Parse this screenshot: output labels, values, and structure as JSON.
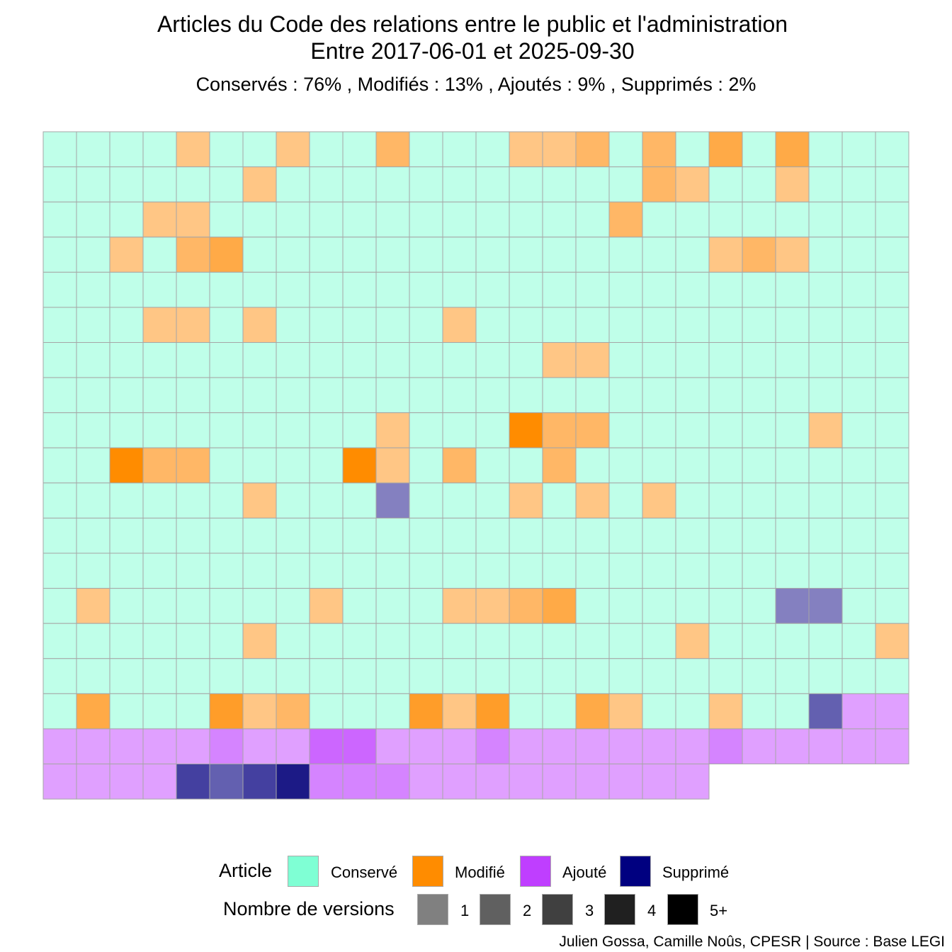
{
  "chart_data": {
    "type": "heatmap",
    "title_line1": "Articles du Code des relations entre le public et l'administration",
    "title_line2": "Entre 2017-06-01 et 2025-09-30",
    "subtitle": "Conservés :  76% , Modifiés :  13% , Ajoutés :  9% , Supprimés :  2%",
    "columns": 26,
    "grid_color": "#a6a6a6",
    "status_codes": {
      "C": "Conservé",
      "M": "Modifié",
      "A": "Ajouté",
      "S": "Supprimé"
    },
    "rows": [
      [
        "C1",
        "C1",
        "C1",
        "C1",
        "M1",
        "C1",
        "C1",
        "M1",
        "C1",
        "C1",
        "M2",
        "C1",
        "C1",
        "C1",
        "M1",
        "M1",
        "M2",
        "C1",
        "M2",
        "C1",
        "M3",
        "C1",
        "M3",
        "C1",
        "C1",
        "C1"
      ],
      [
        "C1",
        "C1",
        "C1",
        "C1",
        "C1",
        "C1",
        "M1",
        "C1",
        "C1",
        "C1",
        "C1",
        "C1",
        "C1",
        "C1",
        "C1",
        "C1",
        "C1",
        "C1",
        "M2",
        "M1",
        "C1",
        "C1",
        "M1",
        "C1",
        "C1",
        "C1"
      ],
      [
        "C1",
        "C1",
        "C1",
        "M1",
        "M1",
        "C1",
        "C1",
        "C1",
        "C1",
        "C1",
        "C1",
        "C1",
        "C1",
        "C1",
        "C1",
        "C1",
        "C1",
        "M2",
        "C1",
        "C1",
        "C1",
        "C1",
        "C1",
        "C1",
        "C1",
        "C1"
      ],
      [
        "C1",
        "C1",
        "M1",
        "C1",
        "M2",
        "M3",
        "C1",
        "C1",
        "C1",
        "C1",
        "C1",
        "C1",
        "C1",
        "C1",
        "C1",
        "C1",
        "C1",
        "C1",
        "C1",
        "C1",
        "M1",
        "M2",
        "M1",
        "C1",
        "C1",
        "C1"
      ],
      [
        "C1",
        "C1",
        "C1",
        "C1",
        "C1",
        "C1",
        "C1",
        "C1",
        "C1",
        "C1",
        "C1",
        "C1",
        "C1",
        "C1",
        "C1",
        "C1",
        "C1",
        "C1",
        "C1",
        "C1",
        "C1",
        "C1",
        "C1",
        "C1",
        "C1",
        "C1"
      ],
      [
        "C1",
        "C1",
        "C1",
        "M1",
        "M1",
        "C1",
        "M1",
        "C1",
        "C1",
        "C1",
        "C1",
        "C1",
        "M1",
        "C1",
        "C1",
        "C1",
        "C1",
        "C1",
        "C1",
        "C1",
        "C1",
        "C1",
        "C1",
        "C1",
        "C1",
        "C1"
      ],
      [
        "C1",
        "C1",
        "C1",
        "C1",
        "C1",
        "C1",
        "C1",
        "C1",
        "C1",
        "C1",
        "C1",
        "C1",
        "C1",
        "C1",
        "C1",
        "M1",
        "M1",
        "C1",
        "C1",
        "C1",
        "C1",
        "C1",
        "C1",
        "C1",
        "C1",
        "C1"
      ],
      [
        "C1",
        "C1",
        "C1",
        "C1",
        "C1",
        "C1",
        "C1",
        "C1",
        "C1",
        "C1",
        "C1",
        "C1",
        "C1",
        "C1",
        "C1",
        "C1",
        "C1",
        "C1",
        "C1",
        "C1",
        "C1",
        "C1",
        "C1",
        "C1",
        "C1",
        "C1"
      ],
      [
        "C1",
        "C1",
        "C1",
        "C1",
        "C1",
        "C1",
        "C1",
        "C1",
        "C1",
        "C1",
        "M1",
        "C1",
        "C1",
        "C1",
        "M5",
        "M2",
        "M2",
        "C1",
        "C1",
        "C1",
        "C1",
        "C1",
        "C1",
        "M1",
        "C1",
        "C1"
      ],
      [
        "C1",
        "C1",
        "M5",
        "M2",
        "M2",
        "C1",
        "C1",
        "C1",
        "C1",
        "M5",
        "M1",
        "C1",
        "M2",
        "C1",
        "C1",
        "M2",
        "C1",
        "C1",
        "C1",
        "C1",
        "C1",
        "C1",
        "C1",
        "C1",
        "C1",
        "C1"
      ],
      [
        "C1",
        "C1",
        "C1",
        "C1",
        "C1",
        "C1",
        "M1",
        "C1",
        "C1",
        "C1",
        "S1",
        "C1",
        "C1",
        "C1",
        "M1",
        "C1",
        "M1",
        "C1",
        "M1",
        "C1",
        "C1",
        "C1",
        "C1",
        "C1",
        "C1",
        "C1"
      ],
      [
        "C1",
        "C1",
        "C1",
        "C1",
        "C1",
        "C1",
        "C1",
        "C1",
        "C1",
        "C1",
        "C1",
        "C1",
        "C1",
        "C1",
        "C1",
        "C1",
        "C1",
        "C1",
        "C1",
        "C1",
        "C1",
        "C1",
        "C1",
        "C1",
        "C1",
        "C1"
      ],
      [
        "C1",
        "C1",
        "C1",
        "C1",
        "C1",
        "C1",
        "C1",
        "C1",
        "C1",
        "C1",
        "C1",
        "C1",
        "C1",
        "C1",
        "C1",
        "C1",
        "C1",
        "C1",
        "C1",
        "C1",
        "C1",
        "C1",
        "C1",
        "C1",
        "C1",
        "C1"
      ],
      [
        "C1",
        "M1",
        "C1",
        "C1",
        "C1",
        "C1",
        "C1",
        "C1",
        "M1",
        "C1",
        "C1",
        "C1",
        "M1",
        "M1",
        "M2",
        "M3",
        "C1",
        "C1",
        "C1",
        "C1",
        "C1",
        "C1",
        "S1",
        "S1",
        "C1",
        "C1"
      ],
      [
        "C1",
        "C1",
        "C1",
        "C1",
        "C1",
        "C1",
        "M1",
        "C1",
        "C1",
        "C1",
        "C1",
        "C1",
        "C1",
        "C1",
        "C1",
        "C1",
        "C1",
        "C1",
        "C1",
        "M1",
        "C1",
        "C1",
        "C1",
        "C1",
        "C1",
        "M1"
      ],
      [
        "C1",
        "C1",
        "C1",
        "C1",
        "C1",
        "C1",
        "C1",
        "C1",
        "C1",
        "C1",
        "C1",
        "C1",
        "C1",
        "C1",
        "C1",
        "C1",
        "C1",
        "C1",
        "C1",
        "C1",
        "C1",
        "C1",
        "C1",
        "C1",
        "C1",
        "C1"
      ],
      [
        "C1",
        "M3",
        "C1",
        "C1",
        "C1",
        "M4",
        "M1",
        "M2",
        "C1",
        "C1",
        "C1",
        "M4",
        "M1",
        "M4",
        "C1",
        "C1",
        "M3",
        "M1",
        "C1",
        "C1",
        "M1",
        "C1",
        "C1",
        "S2",
        "A1",
        "A1"
      ],
      [
        "A1",
        "A1",
        "A1",
        "A1",
        "A1",
        "A2",
        "A1",
        "A1",
        "A3",
        "A3",
        "A1",
        "A1",
        "A1",
        "A2",
        "A1",
        "A1",
        "A1",
        "A1",
        "A1",
        "A1",
        "A2",
        "A1",
        "A1",
        "A1",
        "A1",
        "A1"
      ],
      [
        "A1",
        "A1",
        "A1",
        "A1",
        "S3",
        "S2",
        "S3",
        "S5",
        "A2",
        "A2",
        "A2",
        "A1",
        "A1",
        "A1",
        "A1",
        "A1",
        "A1",
        "A1",
        "A1",
        "A1"
      ]
    ],
    "palette": {
      "C": [
        "#bfffe9",
        "#bfffe9",
        "#bfffe9",
        "#bfffe9",
        "#bfffe9"
      ],
      "M": [
        "#ffc685",
        "#ffb766",
        "#ffaa47",
        "#ff9d29",
        "#ff8c00"
      ],
      "A": [
        "#e0a0ff",
        "#d584ff",
        "#cc66ff",
        "#c44dff",
        "#bf40ff"
      ],
      "S": [
        "#8480c0",
        "#6360b0",
        "#4440a0",
        "#302c94",
        "#1c1a86"
      ]
    }
  },
  "legend": {
    "article_title": "Article",
    "items": [
      {
        "label": "Conservé",
        "color": "#7fffd4"
      },
      {
        "label": "Modifié",
        "color": "#ff8c00"
      },
      {
        "label": "Ajouté",
        "color": "#bf3eff"
      },
      {
        "label": "Supprimé",
        "color": "#000080"
      }
    ],
    "versions_title": "Nombre de versions",
    "versions": [
      {
        "label": "1",
        "color": "#808080"
      },
      {
        "label": "2",
        "color": "#606060"
      },
      {
        "label": "3",
        "color": "#404040"
      },
      {
        "label": "4",
        "color": "#202020"
      },
      {
        "label": "5+",
        "color": "#000000"
      }
    ]
  },
  "caption": "Julien Gossa, Camille Noûs, CPESR  |  Source : Base LEGI"
}
